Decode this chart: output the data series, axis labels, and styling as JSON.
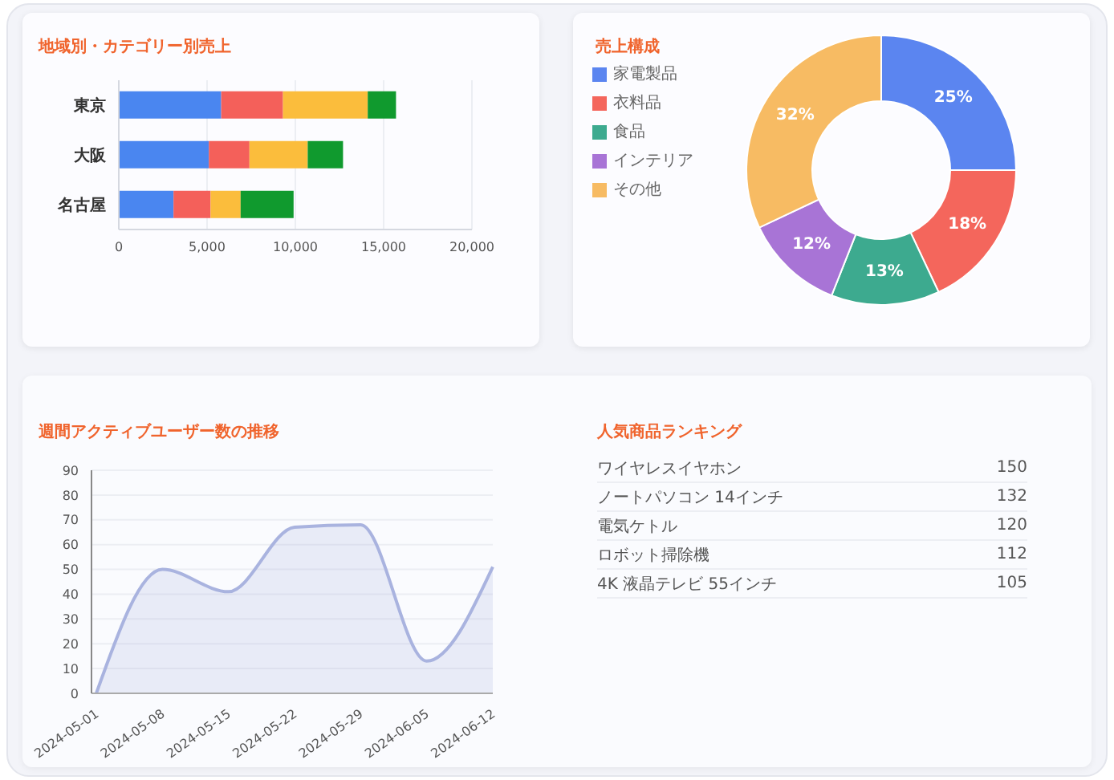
{
  "chart_data": [
    {
      "type": "bar",
      "title": "地域別・カテゴリー別売上",
      "orientation": "horizontal",
      "stacked": true,
      "categories": [
        "東京",
        "大阪",
        "名古屋"
      ],
      "series": [
        {
          "color": "#4a86f0",
          "values": [
            5800,
            5100,
            3100
          ]
        },
        {
          "color": "#f4605a",
          "values": [
            3500,
            2300,
            2100
          ]
        },
        {
          "color": "#fbbd3c",
          "values": [
            4800,
            3300,
            1700
          ]
        },
        {
          "color": "#109a2e",
          "values": [
            1600,
            2000,
            3000
          ]
        }
      ],
      "xlim": [
        0,
        20000
      ],
      "xticks": [
        0,
        {
          "value": 5000,
          "label": "5,000"
        },
        {
          "value": 10000,
          "label": "10,000"
        },
        {
          "value": 15000,
          "label": "15,000"
        },
        {
          "value": 20000,
          "label": "20,000"
        }
      ],
      "grid": "x"
    },
    {
      "type": "donut",
      "title": "売上構成",
      "categories": [
        "家電製品",
        "衣料品",
        "食品",
        "インテリア",
        "その他"
      ],
      "values": [
        25,
        18,
        13,
        12,
        32
      ],
      "colors": [
        "#5b85f0",
        "#f4665c",
        "#3daa8f",
        "#a874d6",
        "#f7bb63"
      ],
      "value_labels": [
        "25%",
        "18%",
        "13%",
        "12%",
        "32%"
      ],
      "legend": "top left"
    },
    {
      "type": "area",
      "title": "週間アクティブユーザー数の推移",
      "categories": [
        "2024-05-01",
        "2024-05-08",
        "2024-05-15",
        "2024-05-22",
        "2024-05-29",
        "2024-06-05",
        "2024-06-12"
      ],
      "values": [
        0,
        50,
        41,
        67,
        68,
        13,
        51
      ],
      "color": "#a9b3df",
      "ylim": [
        0,
        90
      ],
      "yticks": [
        0,
        10,
        20,
        30,
        40,
        50,
        60,
        70,
        80,
        90
      ],
      "grid": "y"
    },
    {
      "type": "other",
      "title": "人気商品ランキング",
      "categories": [
        "ワイヤレスイヤホン",
        "ノートパソコン 14インチ",
        "電気ケトル",
        "ロボット掃除機",
        "4K 液晶テレビ 55インチ"
      ],
      "values": [
        150,
        132,
        120,
        112,
        105
      ],
      "data_labels": true
    }
  ]
}
